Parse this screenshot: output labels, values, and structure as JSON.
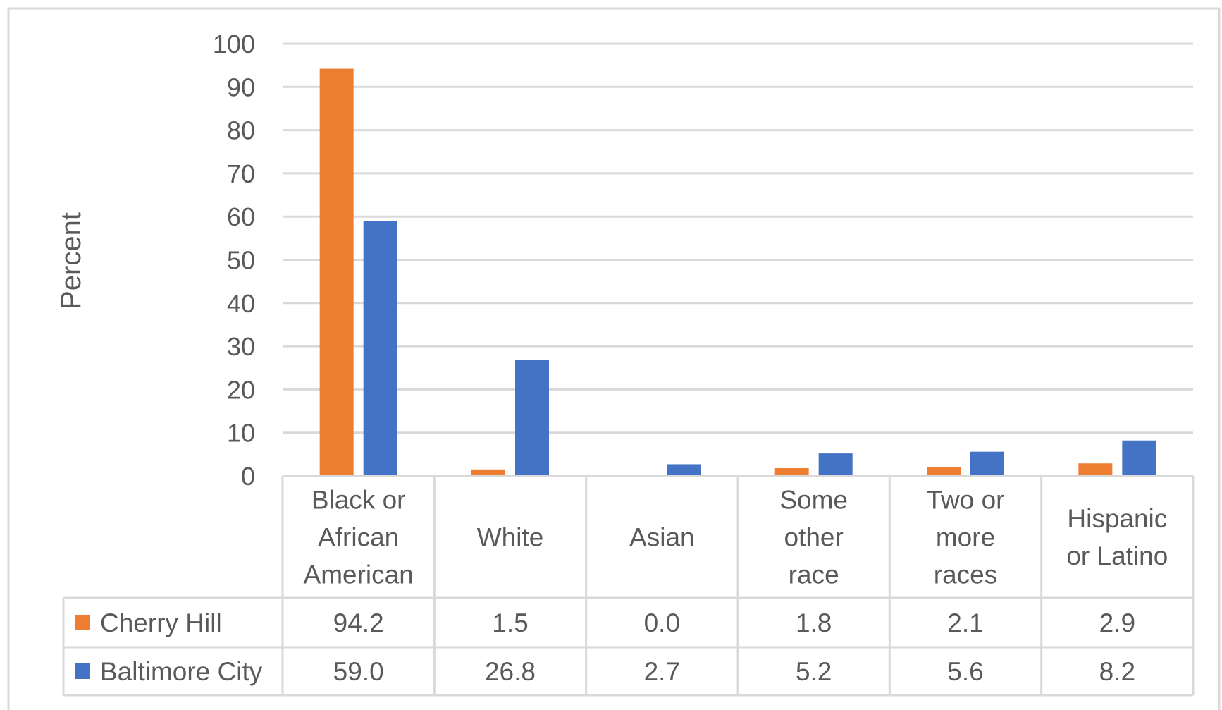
{
  "chart_data": {
    "type": "bar",
    "title": "",
    "xlabel": "",
    "ylabel": "Percent",
    "ylim": [
      0,
      100
    ],
    "yticks": [
      0,
      10,
      20,
      30,
      40,
      50,
      60,
      70,
      80,
      90,
      100
    ],
    "grid": true,
    "legend": "data-table",
    "categories": [
      [
        "Black or",
        "African",
        "American"
      ],
      [
        "White"
      ],
      [
        "Asian"
      ],
      [
        "Some",
        "other",
        "race"
      ],
      [
        "Two or",
        "more",
        "races"
      ],
      [
        "Hispanic",
        "or Latino"
      ]
    ],
    "series": [
      {
        "name": "Cherry Hill",
        "color": "#ED7D31",
        "values": [
          94.2,
          1.5,
          0.0,
          1.8,
          2.1,
          2.9
        ],
        "labels": [
          "94.2",
          "1.5",
          "0.0",
          "1.8",
          "2.1",
          "2.9"
        ]
      },
      {
        "name": "Baltimore City",
        "color": "#4472C4",
        "values": [
          59.0,
          26.8,
          2.7,
          5.2,
          5.6,
          8.2
        ],
        "labels": [
          "59.0",
          "26.8",
          "2.7",
          "5.2",
          "5.6",
          "8.2"
        ]
      }
    ]
  }
}
